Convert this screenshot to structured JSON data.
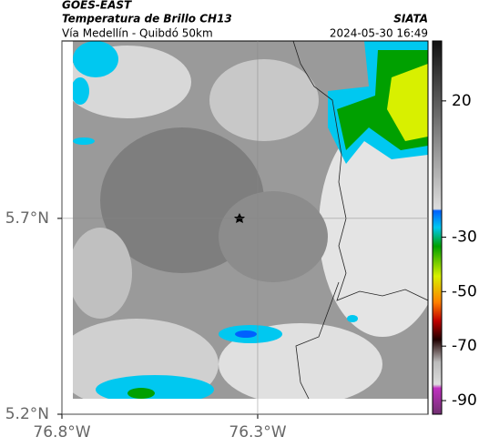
{
  "header": {
    "satellite": "GOES-EAST",
    "product": "Temperatura de Brillo CH13",
    "source": "SIATA",
    "route": "Vía Medellín - Quibdó 50km",
    "datetime": "2024-05-30 16:49"
  },
  "map": {
    "xlim": [
      -76.8,
      -75.865
    ],
    "ylim": [
      5.2,
      6.153
    ],
    "xticks": [
      {
        "value": -76.8,
        "label": "76.8°W"
      },
      {
        "value": -76.3,
        "label": "76.3°W"
      }
    ],
    "yticks": [
      {
        "value": 5.2,
        "label": "5.2°N"
      },
      {
        "value": 5.7,
        "label": "5.7°N"
      }
    ],
    "grid": true
  },
  "colorbar": {
    "lim": [
      42,
      -95
    ],
    "ticks": [
      20,
      -30,
      -50,
      -70,
      -90
    ]
  }
}
